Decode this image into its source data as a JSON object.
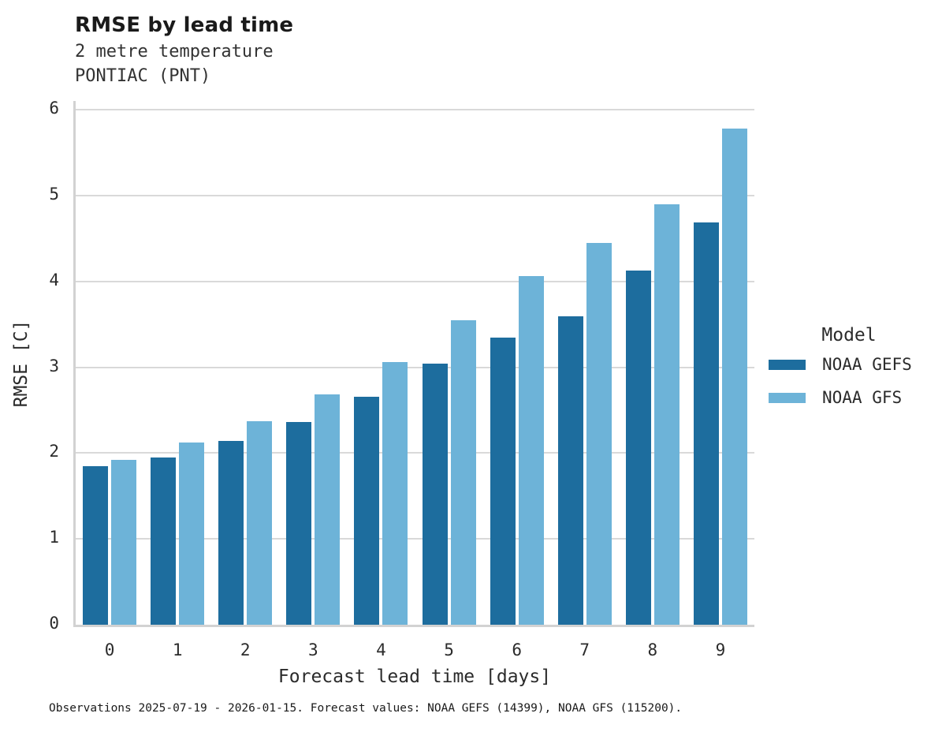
{
  "header": {
    "title": "RMSE by lead time",
    "subtitle_line1": "2 metre temperature",
    "subtitle_line2": "PONTIAC (PNT)"
  },
  "chart_data": {
    "type": "bar",
    "title": "RMSE by lead time",
    "subtitle": [
      "2 metre temperature",
      "PONTIAC (PNT)"
    ],
    "categories": [
      "0",
      "1",
      "2",
      "3",
      "4",
      "5",
      "6",
      "7",
      "8",
      "9"
    ],
    "series": [
      {
        "name": "NOAA GEFS",
        "color": "#1d6d9e",
        "values": [
          1.85,
          1.95,
          2.14,
          2.36,
          2.66,
          3.04,
          3.35,
          3.59,
          4.13,
          4.69
        ]
      },
      {
        "name": "NOAA GFS",
        "color": "#6db3d8",
        "values": [
          1.92,
          2.12,
          2.37,
          2.68,
          3.06,
          3.55,
          4.06,
          4.45,
          4.9,
          5.78
        ]
      }
    ],
    "xlabel": "Forecast lead time [days]",
    "ylabel": "RMSE [C]",
    "ylim": [
      0,
      6
    ],
    "yticks": [
      0,
      1,
      2,
      3,
      4,
      5,
      6
    ],
    "grid": true,
    "legend_position": "right"
  },
  "legend": {
    "title": "Model"
  },
  "footer": {
    "caption": "Observations 2025-07-19 - 2026-01-15. Forecast values: NOAA GEFS (14399), NOAA GFS (115200)."
  },
  "colors": {
    "gefs_dark_blue": "#1d6d9e",
    "gfs_light_blue": "#6db3d8",
    "gridline_gray": "#d9d9d9",
    "axis_gray": "#d2d2d2"
  }
}
